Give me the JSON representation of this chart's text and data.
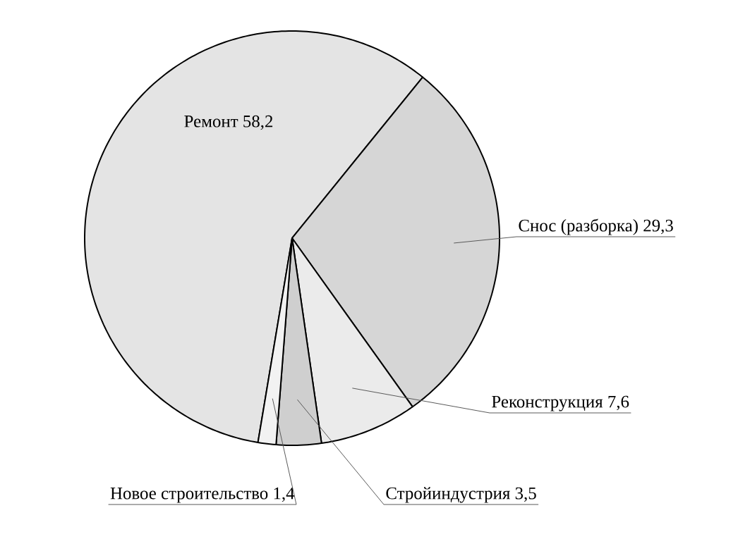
{
  "chart_data": {
    "type": "pie",
    "categories": [
      "Ремонт",
      "Снос (разборка)",
      "Реконструкция",
      "Стройиндустрия",
      "Новое строительство"
    ],
    "values": [
      58.2,
      29.3,
      7.6,
      3.5,
      1.4
    ],
    "value_labels": [
      "58,2",
      "29,3",
      "7,6",
      "3,5",
      "1,4"
    ],
    "colors": [
      "#e4e4e4",
      "#d6d6d6",
      "#ebebeb",
      "#cfcfcf",
      "#f2f2f2"
    ]
  }
}
